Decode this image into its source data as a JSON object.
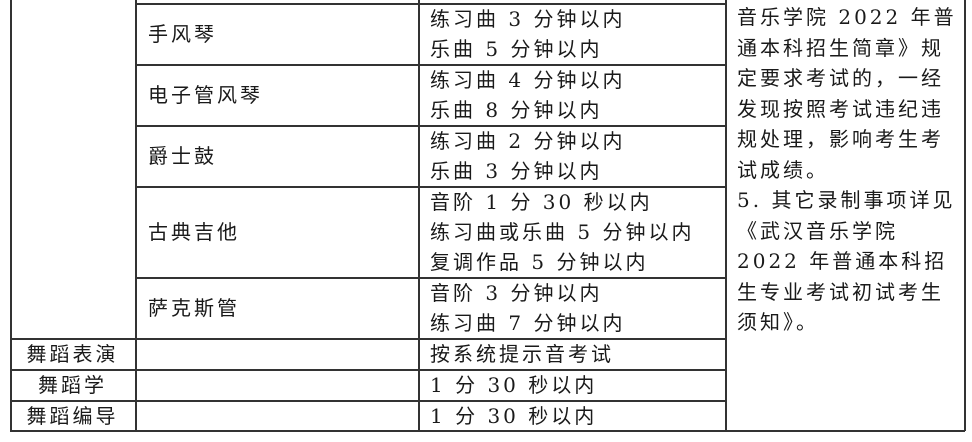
{
  "table": {
    "instrument_rows": [
      {
        "instrument": "手风琴",
        "requirements": [
          "练习曲 3 分钟以内",
          "乐曲 5 分钟以内"
        ]
      },
      {
        "instrument": "电子管风琴",
        "requirements": [
          "练习曲 4 分钟以内",
          "乐曲 8 分钟以内"
        ]
      },
      {
        "instrument": "爵士鼓",
        "requirements": [
          "练习曲 2 分钟以内",
          "乐曲 3 分钟以内"
        ]
      },
      {
        "instrument": "古典吉他",
        "requirements": [
          "音阶 1 分 30 秒以内",
          "练习曲或乐曲 5 分钟以内",
          "复调作品 5 分钟以内"
        ]
      },
      {
        "instrument": "萨克斯管",
        "requirements": [
          "音阶 3 分钟以内",
          "练习曲 7 分钟以内"
        ]
      }
    ],
    "major_rows": [
      {
        "major": "舞蹈表演",
        "requirement": "按系统提示音考试"
      },
      {
        "major": "舞蹈学",
        "requirement": "1 分 30 秒以内"
      },
      {
        "major": "舞蹈编导",
        "requirement": "1 分 30 秒以内"
      }
    ],
    "notes_lines": [
      "音乐学院 2022 年普",
      "通本科招生简章》规",
      "定要求考试的，一经",
      "发现按照考试违纪违",
      "规处理，影响考生考",
      "试成绩。",
      "5. 其它录制事项详见",
      "《武汉音乐学院",
      "2022 年普通本科招",
      "生专业考试初试考生",
      "须知》。"
    ]
  }
}
